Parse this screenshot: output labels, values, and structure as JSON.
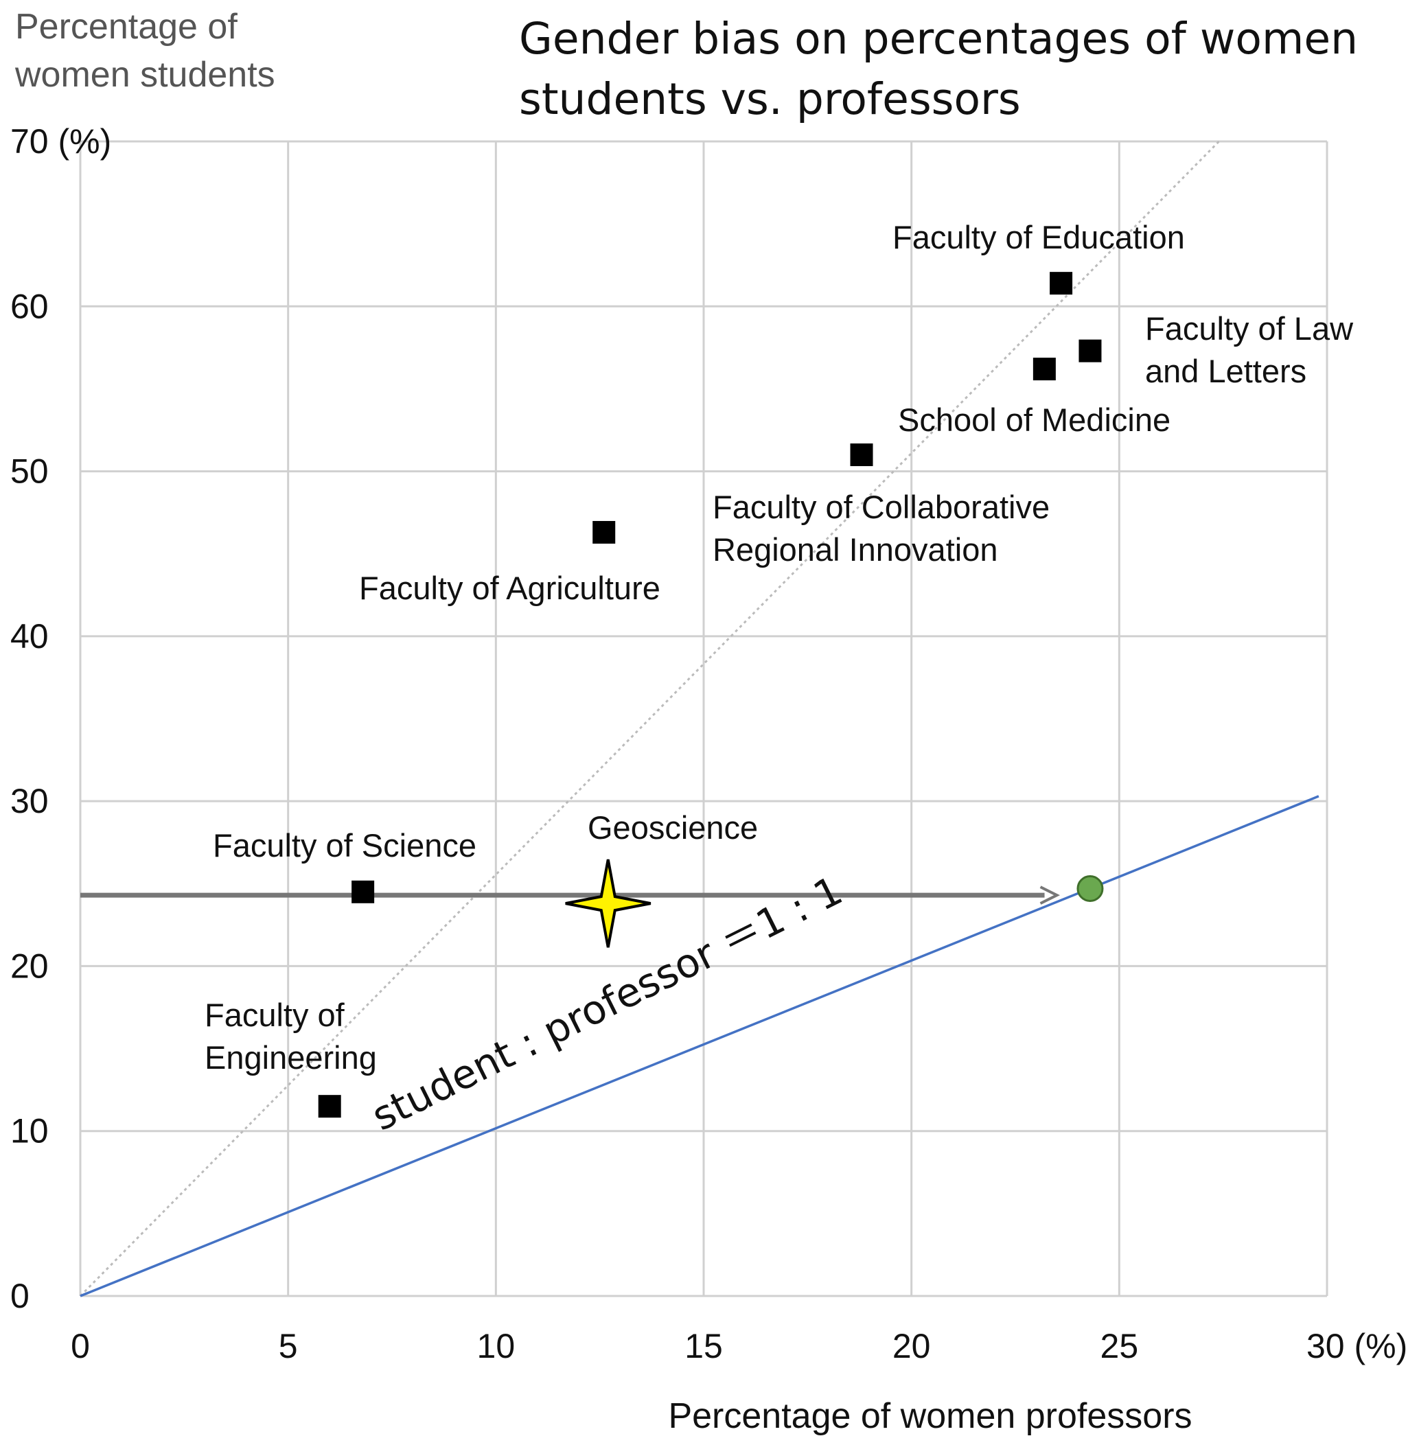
{
  "chart_data": {
    "type": "scatter",
    "title_lines": [
      "Gender bias on percentages of women",
      "students  vs.  professors"
    ],
    "ylabel_lines": [
      "Percentage of",
      "women students"
    ],
    "xlabel": "Percentage of women professors",
    "xlim": [
      0,
      30
    ],
    "ylim": [
      0,
      70
    ],
    "x_ticks": [
      "0",
      "5",
      "10",
      "15",
      "20",
      "25",
      "30"
    ],
    "y_ticks": [
      "0",
      "10",
      "20",
      "30",
      "40",
      "50",
      "60",
      "70"
    ],
    "x_unit": "(%)",
    "y_unit": "(%)",
    "grid": true,
    "points": [
      {
        "label_lines": [
          "Faculty of Education"
        ],
        "x": 23.6,
        "y": 61.4
      },
      {
        "label_lines": [
          "Faculty of Law",
          "and Letters"
        ],
        "x": 24.3,
        "y": 57.3
      },
      {
        "label_lines": [
          "School of Medicine"
        ],
        "x": 23.2,
        "y": 56.2
      },
      {
        "label_lines": [
          "Faculty of Collaborative",
          "Regional Innovation"
        ],
        "x": 18.8,
        "y": 51.0
      },
      {
        "label_lines": [
          "Faculty of Agriculture"
        ],
        "x": 12.6,
        "y": 46.3
      },
      {
        "label_lines": [
          "Faculty of Science"
        ],
        "x": 6.8,
        "y": 24.5
      },
      {
        "label_lines": [
          "Faculty of",
          "Engineering"
        ],
        "x": 6.0,
        "y": 11.5
      }
    ],
    "highlight": {
      "label": "Geoscience",
      "x": 12.7,
      "y": 23.8,
      "marker": "star",
      "color": "#FFF200"
    },
    "ratio_line": {
      "label": "student : professor ＝1 : 1",
      "from": [
        0,
        0
      ],
      "to": [
        29.8,
        30.3
      ],
      "color": "#4472C4"
    },
    "diagonal_line": {
      "from": [
        0,
        0
      ],
      "to": [
        27.4,
        70
      ],
      "color": "#BBBBBB"
    },
    "arrow": {
      "y": 24.3,
      "x_start": 0,
      "x_end": 23.5,
      "color": "#777777"
    },
    "target_point": {
      "x": 24.3,
      "y": 24.7,
      "color": "#6AA84F"
    }
  }
}
